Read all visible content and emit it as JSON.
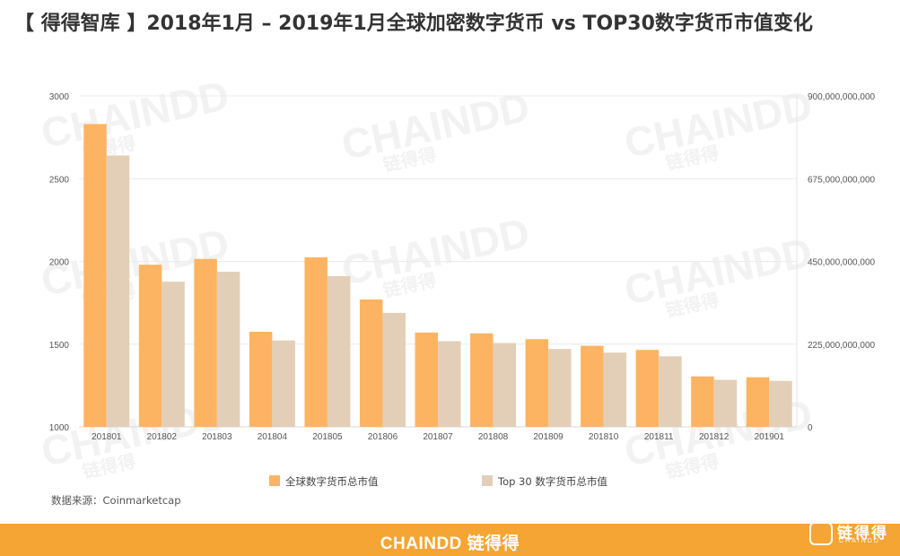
{
  "title": "【 得得智库 】2018年1月 – 2019年1月全球加密数字货币 vs TOP30数字货币市值变化",
  "source": "数据来源：Coinmarketcap",
  "footer": {
    "logo_text": "CHAINDD 链得得",
    "corner_cn": "链得得",
    "corner_en": "CHAINDD"
  },
  "watermark": {
    "text_en": "CHAINDD",
    "text_cn": "链得得"
  },
  "colors": {
    "series1": "#fdb462",
    "series2": "#e3cfb8",
    "footer": "#f5a533"
  },
  "chart_data": {
    "type": "bar",
    "categories": [
      "201801",
      "201802",
      "201803",
      "201804",
      "201805",
      "201806",
      "201807",
      "201808",
      "201809",
      "201810",
      "201811",
      "201812",
      "201901"
    ],
    "series": [
      {
        "name": "全球数字货币总市值",
        "axis": "left",
        "values": [
          2830,
          1980,
          2015,
          1575,
          2025,
          1770,
          1570,
          1565,
          1530,
          1490,
          1465,
          1305,
          1300
        ]
      },
      {
        "name": "Top 30 数字货币总市值",
        "axis": "right",
        "values": [
          738000000000,
          395000000000,
          422000000000,
          235000000000,
          410000000000,
          310000000000,
          233000000000,
          228000000000,
          212000000000,
          202000000000,
          192000000000,
          128000000000,
          125000000000
        ]
      }
    ],
    "y_left": {
      "min": 1000,
      "max": 3000,
      "ticks": [
        "1000",
        "1500",
        "2000",
        "2500",
        "3000"
      ]
    },
    "y_right": {
      "min": 0,
      "max": 900000000000,
      "ticks": [
        "0",
        "225,000,000,000",
        "450,000,000,000",
        "675,000,000,000",
        "900,000,000,000"
      ]
    },
    "grid": true,
    "legend_position": "bottom"
  }
}
